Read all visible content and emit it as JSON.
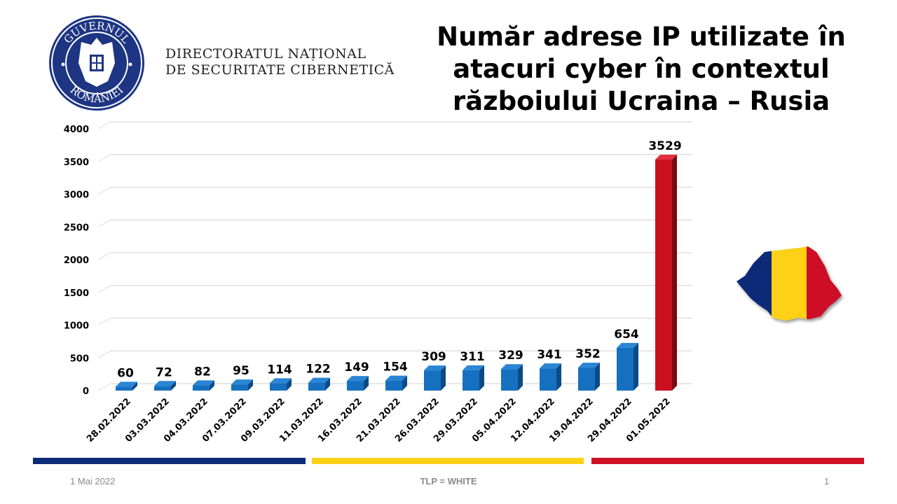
{
  "header": {
    "seal_text_top": "GUVERNUL",
    "seal_text_bottom": "ROMÂNIEI",
    "org_line1": "DIRECTORATUL NAȚIONAL",
    "org_line2": "DE SECURITATE CIBERNETICĂ",
    "title_line1": "Număr adrese IP utilizate în",
    "title_line2": "atacuri cyber în contextul",
    "title_line3": "războiului Ucraina – Rusia"
  },
  "chart_data": {
    "type": "bar",
    "title": "Număr adrese IP utilizate în atacuri cyber în contextul războiului Ucraina – Rusia",
    "xlabel": "",
    "ylabel": "",
    "ylim": [
      0,
      4000
    ],
    "yticks": [
      0,
      500,
      1000,
      1500,
      2000,
      2500,
      3000,
      3500,
      4000
    ],
    "grid": true,
    "categories": [
      "28.02.2022",
      "03.03.2022",
      "04.03.2022",
      "07.03.2022",
      "09.03.2022",
      "11.03.2022",
      "16.03.2022",
      "21.03.2022",
      "26.03.2022",
      "29.03.2022",
      "05.04.2022",
      "12.04.2022",
      "19.04.2022",
      "29.04.2022",
      "01.05.2022"
    ],
    "values": [
      60,
      72,
      82,
      95,
      114,
      122,
      149,
      154,
      309,
      311,
      329,
      341,
      352,
      654,
      3529
    ],
    "colors": {
      "default": "#1570c0",
      "highlight": "#c8101e"
    },
    "highlight_index": 14
  },
  "footer": {
    "date": "1 Mai 2022",
    "tlp": "TLP = WHITE",
    "page": "1",
    "stripe_colors": [
      "#0b2a78",
      "#fcd116",
      "#ce1126"
    ]
  }
}
